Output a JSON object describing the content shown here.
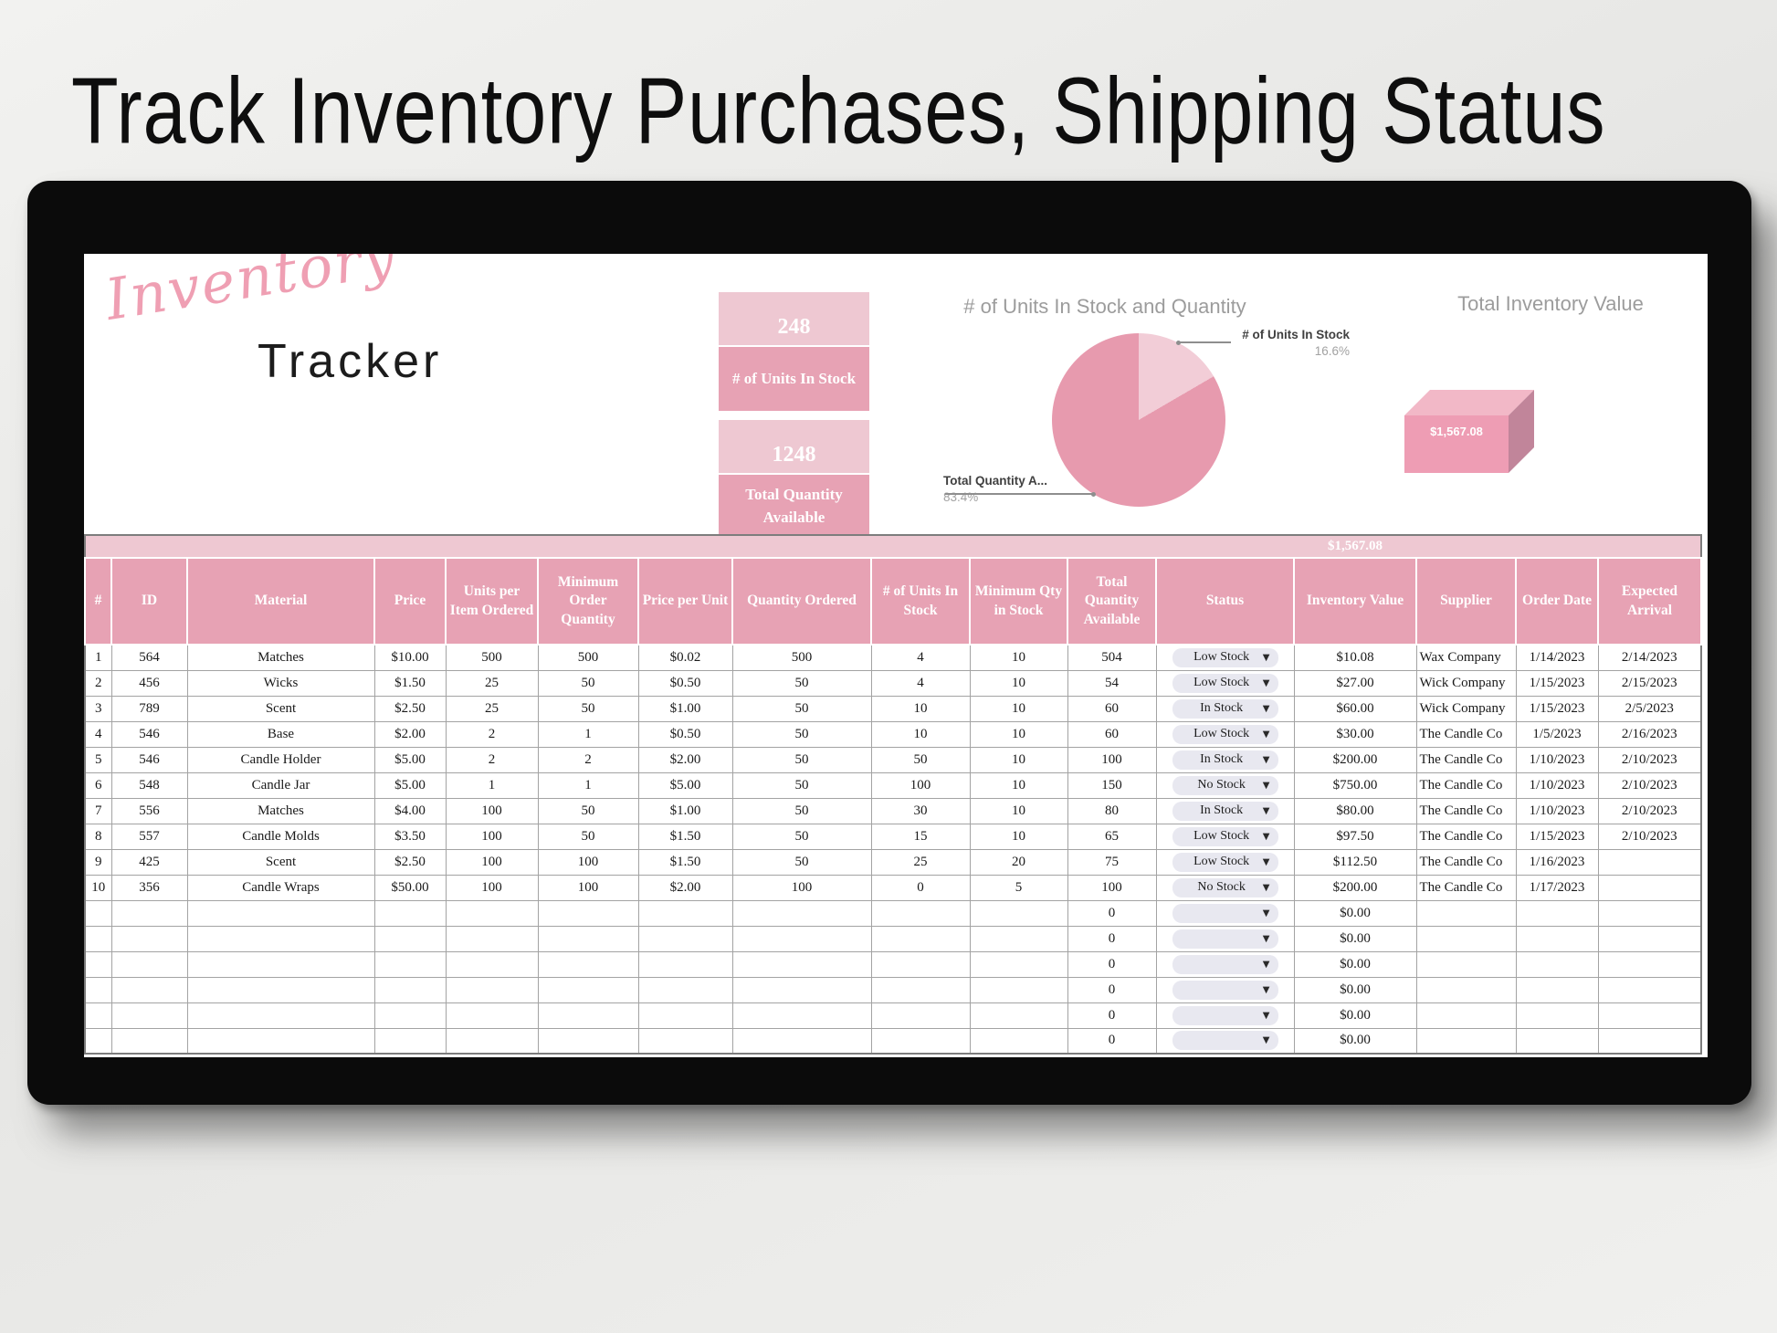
{
  "page": {
    "title": "Track Inventory Purchases, Shipping Status"
  },
  "logo": {
    "line1": "Inventory",
    "line2": "Tracker"
  },
  "kpis": [
    {
      "value": "248",
      "label": "# of Units In Stock"
    },
    {
      "value": "1248",
      "label": "Total Quantity Available"
    }
  ],
  "chart_data": [
    {
      "type": "pie",
      "title": "# of Units In Stock and Quantity",
      "slices": [
        {
          "label": "# of Units In Stock",
          "pct": 16.6,
          "pct_label": "16.6%",
          "value": 248,
          "color": "#f2cdd7"
        },
        {
          "label": "Total Quantity A...",
          "pct": 83.4,
          "pct_label": "83.4%",
          "value": 1248,
          "color": "#e79aae"
        }
      ],
      "legend_position": "callout-labels"
    },
    {
      "type": "bar",
      "title": "Total Inventory Value",
      "categories": [
        "Total"
      ],
      "values": [
        1567.08
      ],
      "data_label": "$1,567.08",
      "style": "3d-box"
    }
  ],
  "table": {
    "band_total": "$1,567.08",
    "headers": [
      "#",
      "ID",
      "Material",
      "Price",
      "Units per Item Ordered",
      "Minimum Order Quantity",
      "Price per Unit",
      "Quantity Ordered",
      "# of Units In Stock",
      "Minimum Qty in Stock",
      "Total Quantity Available",
      "Status",
      "Inventory Value",
      "Supplier",
      "Order Date",
      "Expected Arrival"
    ],
    "field_order": [
      "num",
      "id",
      "material",
      "price",
      "units_per_item",
      "min_order_qty",
      "price_per_unit",
      "qty_ordered",
      "units_in_stock",
      "min_qty_stock",
      "total_qty",
      "status",
      "inv_value",
      "supplier",
      "order_date",
      "arrival"
    ],
    "rows": [
      {
        "num": "1",
        "id": "564",
        "material": "Matches",
        "price": "$10.00",
        "units_per_item": "500",
        "min_order_qty": "500",
        "price_per_unit": "$0.02",
        "qty_ordered": "500",
        "units_in_stock": "4",
        "min_qty_stock": "10",
        "total_qty": "504",
        "status": "Low Stock",
        "inv_value": "$10.08",
        "supplier": "Wax Company",
        "order_date": "1/14/2023",
        "arrival": "2/14/2023"
      },
      {
        "num": "2",
        "id": "456",
        "material": "Wicks",
        "price": "$1.50",
        "units_per_item": "25",
        "min_order_qty": "50",
        "price_per_unit": "$0.50",
        "qty_ordered": "50",
        "units_in_stock": "4",
        "min_qty_stock": "10",
        "total_qty": "54",
        "status": "Low Stock",
        "inv_value": "$27.00",
        "supplier": "Wick Company",
        "order_date": "1/15/2023",
        "arrival": "2/15/2023"
      },
      {
        "num": "3",
        "id": "789",
        "material": "Scent",
        "price": "$2.50",
        "units_per_item": "25",
        "min_order_qty": "50",
        "price_per_unit": "$1.00",
        "qty_ordered": "50",
        "units_in_stock": "10",
        "min_qty_stock": "10",
        "total_qty": "60",
        "status": "In Stock",
        "inv_value": "$60.00",
        "supplier": "Wick Company",
        "order_date": "1/15/2023",
        "arrival": "2/5/2023"
      },
      {
        "num": "4",
        "id": "546",
        "material": "Base",
        "price": "$2.00",
        "units_per_item": "2",
        "min_order_qty": "1",
        "price_per_unit": "$0.50",
        "qty_ordered": "50",
        "units_in_stock": "10",
        "min_qty_stock": "10",
        "total_qty": "60",
        "status": "Low Stock",
        "inv_value": "$30.00",
        "supplier": "The Candle Co",
        "order_date": "1/5/2023",
        "arrival": "2/16/2023"
      },
      {
        "num": "5",
        "id": "546",
        "material": "Candle Holder",
        "price": "$5.00",
        "units_per_item": "2",
        "min_order_qty": "2",
        "price_per_unit": "$2.00",
        "qty_ordered": "50",
        "units_in_stock": "50",
        "min_qty_stock": "10",
        "total_qty": "100",
        "status": "In Stock",
        "inv_value": "$200.00",
        "supplier": "The Candle Co",
        "order_date": "1/10/2023",
        "arrival": "2/10/2023"
      },
      {
        "num": "6",
        "id": "548",
        "material": "Candle Jar",
        "price": "$5.00",
        "units_per_item": "1",
        "min_order_qty": "1",
        "price_per_unit": "$5.00",
        "qty_ordered": "50",
        "units_in_stock": "100",
        "min_qty_stock": "10",
        "total_qty": "150",
        "status": "No Stock",
        "inv_value": "$750.00",
        "supplier": "The Candle Co",
        "order_date": "1/10/2023",
        "arrival": "2/10/2023"
      },
      {
        "num": "7",
        "id": "556",
        "material": "Matches",
        "price": "$4.00",
        "units_per_item": "100",
        "min_order_qty": "50",
        "price_per_unit": "$1.00",
        "qty_ordered": "50",
        "units_in_stock": "30",
        "min_qty_stock": "10",
        "total_qty": "80",
        "status": "In Stock",
        "inv_value": "$80.00",
        "supplier": "The Candle Co",
        "order_date": "1/10/2023",
        "arrival": "2/10/2023"
      },
      {
        "num": "8",
        "id": "557",
        "material": "Candle Molds",
        "price": "$3.50",
        "units_per_item": "100",
        "min_order_qty": "50",
        "price_per_unit": "$1.50",
        "qty_ordered": "50",
        "units_in_stock": "15",
        "min_qty_stock": "10",
        "total_qty": "65",
        "status": "Low Stock",
        "inv_value": "$97.50",
        "supplier": "The Candle Co",
        "order_date": "1/15/2023",
        "arrival": "2/10/2023"
      },
      {
        "num": "9",
        "id": "425",
        "material": "Scent",
        "price": "$2.50",
        "units_per_item": "100",
        "min_order_qty": "100",
        "price_per_unit": "$1.50",
        "qty_ordered": "50",
        "units_in_stock": "25",
        "min_qty_stock": "20",
        "total_qty": "75",
        "status": "Low Stock",
        "inv_value": "$112.50",
        "supplier": "The Candle Co",
        "order_date": "1/16/2023",
        "arrival": ""
      },
      {
        "num": "10",
        "id": "356",
        "material": "Candle Wraps",
        "price": "$50.00",
        "units_per_item": "100",
        "min_order_qty": "100",
        "price_per_unit": "$2.00",
        "qty_ordered": "100",
        "units_in_stock": "0",
        "min_qty_stock": "5",
        "total_qty": "100",
        "status": "No Stock",
        "inv_value": "$200.00",
        "supplier": "The Candle Co",
        "order_date": "1/17/2023",
        "arrival": ""
      }
    ],
    "empty_rows": [
      {
        "num": "",
        "id": "",
        "material": "",
        "price": "",
        "units_per_item": "",
        "min_order_qty": "",
        "price_per_unit": "",
        "qty_ordered": "",
        "units_in_stock": "",
        "min_qty_stock": "",
        "total_qty": "0",
        "status": "",
        "inv_value": "$0.00",
        "supplier": "",
        "order_date": "",
        "arrival": ""
      },
      {
        "num": "",
        "id": "",
        "material": "",
        "price": "",
        "units_per_item": "",
        "min_order_qty": "",
        "price_per_unit": "",
        "qty_ordered": "",
        "units_in_stock": "",
        "min_qty_stock": "",
        "total_qty": "0",
        "status": "",
        "inv_value": "$0.00",
        "supplier": "",
        "order_date": "",
        "arrival": ""
      },
      {
        "num": "",
        "id": "",
        "material": "",
        "price": "",
        "units_per_item": "",
        "min_order_qty": "",
        "price_per_unit": "",
        "qty_ordered": "",
        "units_in_stock": "",
        "min_qty_stock": "",
        "total_qty": "0",
        "status": "",
        "inv_value": "$0.00",
        "supplier": "",
        "order_date": "",
        "arrival": ""
      },
      {
        "num": "",
        "id": "",
        "material": "",
        "price": "",
        "units_per_item": "",
        "min_order_qty": "",
        "price_per_unit": "",
        "qty_ordered": "",
        "units_in_stock": "",
        "min_qty_stock": "",
        "total_qty": "0",
        "status": "",
        "inv_value": "$0.00",
        "supplier": "",
        "order_date": "",
        "arrival": ""
      },
      {
        "num": "",
        "id": "",
        "material": "",
        "price": "",
        "units_per_item": "",
        "min_order_qty": "",
        "price_per_unit": "",
        "qty_ordered": "",
        "units_in_stock": "",
        "min_qty_stock": "",
        "total_qty": "0",
        "status": "",
        "inv_value": "$0.00",
        "supplier": "",
        "order_date": "",
        "arrival": ""
      },
      {
        "num": "",
        "id": "",
        "material": "",
        "price": "",
        "units_per_item": "",
        "min_order_qty": "",
        "price_per_unit": "",
        "qty_ordered": "",
        "units_in_stock": "",
        "min_qty_stock": "",
        "total_qty": "0",
        "status": "",
        "inv_value": "$0.00",
        "supplier": "",
        "order_date": "",
        "arrival": ""
      }
    ]
  },
  "icons": {
    "dropdown_arrow": "▼"
  },
  "colors": {
    "band_pink": "#eec8d2",
    "header_pink": "#e7a2b4",
    "pie_dark": "#e79aae",
    "pie_light": "#f2cdd7",
    "box_front": "#ee9db4",
    "box_top": "#f2b8c7",
    "box_side": "#c1859a",
    "logo_pink": "#ef9fb3"
  }
}
